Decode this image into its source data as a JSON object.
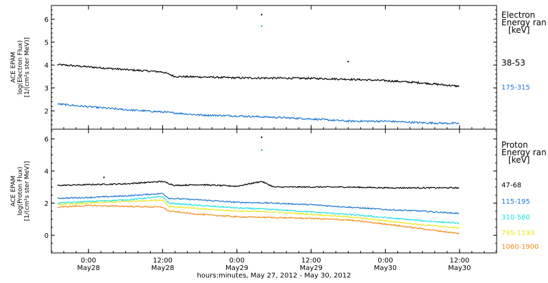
{
  "chart_data": [
    {
      "type": "line",
      "ylabel": [
        "ACE EPAM",
        "log(Electron Flux)",
        "[1/(cm²s ster MeV)]"
      ],
      "ylim": [
        1.2,
        6.6
      ],
      "xlim": [
        -6,
        66
      ],
      "y_ticks": [
        2,
        3,
        4,
        5,
        6
      ],
      "legend": {
        "placement": "right",
        "title_lines": [
          "Electron",
          "Energy ran",
          "[keV]"
        ]
      },
      "series": [
        {
          "name": "38-53",
          "color": "#000000",
          "x": [
            -5,
            0,
            6,
            12,
            14,
            18,
            24,
            30,
            36,
            42,
            48,
            54,
            60
          ],
          "y": [
            4.02,
            3.92,
            3.8,
            3.7,
            3.5,
            3.48,
            3.44,
            3.43,
            3.42,
            3.38,
            3.32,
            3.22,
            3.07
          ]
        },
        {
          "name": "175-315",
          "color": "#1a75d2",
          "x": [
            -5,
            0,
            6,
            12,
            18,
            24,
            30,
            36,
            42,
            48,
            54,
            60
          ],
          "y": [
            2.3,
            2.18,
            2.05,
            1.95,
            1.82,
            1.78,
            1.72,
            1.65,
            1.55,
            1.55,
            1.48,
            1.45
          ]
        }
      ],
      "outliers": [
        {
          "x": 28,
          "y": 6.2,
          "color": "#000000"
        },
        {
          "x": 28,
          "y": 5.7,
          "color": "#1aa0b0"
        },
        {
          "x": 42,
          "y": 4.15,
          "color": "#000000"
        }
      ]
    },
    {
      "type": "line",
      "ylabel": [
        "ACE EPAM",
        "log(Proton Flux)",
        "[1/(cm²s ster MeV)]"
      ],
      "ylim": [
        -1.1,
        6.6
      ],
      "xlim": [
        -6,
        66
      ],
      "y_ticks": [
        0,
        2,
        4,
        6
      ],
      "legend": {
        "placement": "right",
        "title_lines": [
          "Proton",
          "Energy ran",
          "[keV]"
        ]
      },
      "series": [
        {
          "name": "47-68",
          "color": "#000000",
          "x": [
            -5,
            0,
            6,
            12,
            14,
            18,
            24,
            28,
            30,
            36,
            42,
            48,
            54,
            60
          ],
          "y": [
            3.1,
            3.15,
            3.2,
            3.35,
            3.1,
            3.15,
            3.05,
            3.35,
            3.0,
            3.0,
            3.0,
            2.95,
            2.95,
            2.95
          ]
        },
        {
          "name": "115-195",
          "color": "#1a75d2",
          "x": [
            -5,
            0,
            6,
            12,
            13,
            18,
            24,
            30,
            36,
            42,
            48,
            54,
            60
          ],
          "y": [
            2.3,
            2.35,
            2.45,
            2.6,
            2.3,
            2.2,
            2.05,
            2.0,
            1.9,
            1.75,
            1.6,
            1.5,
            1.35
          ]
        },
        {
          "name": "310-580",
          "color": "#20e0e0",
          "x": [
            -5,
            0,
            6,
            12,
            13,
            18,
            24,
            30,
            36,
            42,
            48,
            54,
            60
          ],
          "y": [
            2.0,
            2.1,
            2.2,
            2.4,
            2.0,
            1.85,
            1.7,
            1.6,
            1.45,
            1.3,
            1.1,
            0.9,
            0.75
          ]
        },
        {
          "name": "795-1193",
          "color": "#e8e81a",
          "x": [
            -5,
            0,
            6,
            12,
            13,
            18,
            24,
            30,
            36,
            42,
            48,
            54,
            60
          ],
          "y": [
            1.9,
            2.0,
            2.1,
            2.2,
            1.8,
            1.65,
            1.5,
            1.45,
            1.3,
            1.15,
            0.9,
            0.65,
            0.45
          ]
        },
        {
          "name": "1060-1900",
          "color": "#f08c1a",
          "x": [
            -5,
            0,
            6,
            12,
            13,
            18,
            24,
            30,
            36,
            42,
            48,
            54,
            60
          ],
          "y": [
            1.75,
            1.85,
            1.8,
            1.75,
            1.5,
            1.3,
            1.15,
            1.1,
            1.05,
            0.95,
            0.7,
            0.4,
            0.1
          ]
        }
      ],
      "outliers": [
        {
          "x": 28,
          "y": 6.1,
          "color": "#000000"
        },
        {
          "x": 28,
          "y": 5.3,
          "color": "#1aa0b0"
        },
        {
          "x": 2.5,
          "y": 3.6,
          "color": "#000000"
        }
      ]
    }
  ],
  "x_axis": {
    "ticks": [
      {
        "hours": 0,
        "time": "0:00",
        "date": "May28"
      },
      {
        "hours": 12,
        "time": "12:00",
        "date": "May28"
      },
      {
        "hours": 24,
        "time": "0:00",
        "date": "May29"
      },
      {
        "hours": 36,
        "time": "12:00",
        "date": "May29"
      },
      {
        "hours": 48,
        "time": "0:00",
        "date": "May30"
      },
      {
        "hours": 60,
        "time": "12:00",
        "date": "May30"
      }
    ],
    "label": "hours:minutes, May 27, 2012 - May 30, 2012"
  }
}
